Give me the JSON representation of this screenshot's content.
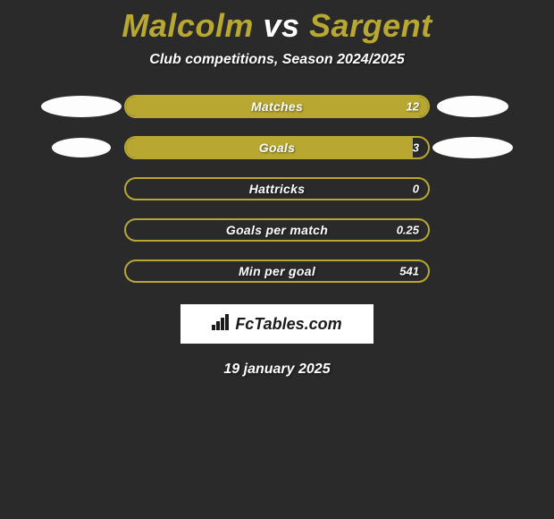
{
  "title": {
    "player1": "Malcolm",
    "vs": "vs",
    "player2": "Sargent",
    "player1_color": "#b8a832",
    "vs_color": "#ffffff",
    "player2_color": "#b8a832"
  },
  "subtitle": "Club competitions, Season 2024/2025",
  "background_color": "#2a2a2a",
  "bar_fill_color": "#b8a832",
  "bar_border_color": "#b8a832",
  "stats": [
    {
      "label": "Matches",
      "value": "12",
      "fill_pct": 100,
      "avatar_left": {
        "w": 90,
        "h": 24
      },
      "avatar_right": {
        "w": 80,
        "h": 24
      }
    },
    {
      "label": "Goals",
      "value": "3",
      "fill_pct": 95,
      "avatar_left": {
        "w": 66,
        "h": 22
      },
      "avatar_right": {
        "w": 90,
        "h": 24
      }
    },
    {
      "label": "Hattricks",
      "value": "0",
      "fill_pct": 0,
      "avatar_left": null,
      "avatar_right": null
    },
    {
      "label": "Goals per match",
      "value": "0.25",
      "fill_pct": 0,
      "avatar_left": null,
      "avatar_right": null
    },
    {
      "label": "Min per goal",
      "value": "541",
      "fill_pct": 0,
      "avatar_left": null,
      "avatar_right": null
    }
  ],
  "logo": {
    "text": "FcTables.com",
    "icon_name": "chart-icon"
  },
  "date": "19 january 2025"
}
